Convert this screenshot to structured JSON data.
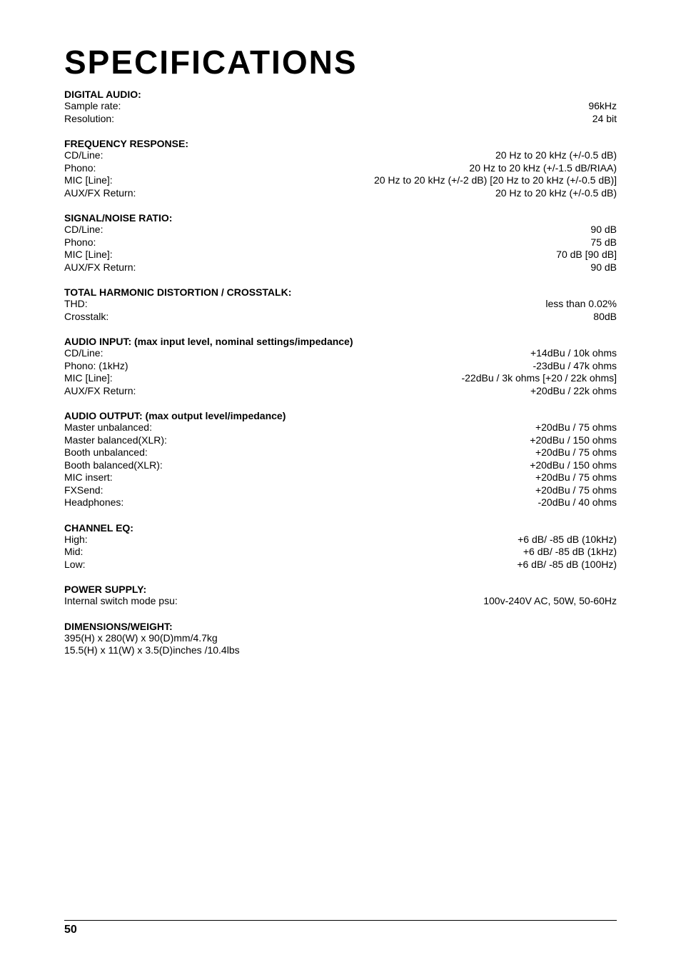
{
  "title": "SPECIFICATIONS",
  "sections": [
    {
      "header": "DIGITAL AUDIO:",
      "rows": [
        {
          "label": "Sample rate:",
          "value": "96kHz"
        },
        {
          "label": "Resolution:",
          "value": "24 bit"
        }
      ]
    },
    {
      "header": "FREQUENCY RESPONSE:",
      "rows": [
        {
          "label": "CD/Line:",
          "value": "20 Hz to 20 kHz (+/-0.5 dB)"
        },
        {
          "label": "Phono:",
          "value": "20 Hz to 20 kHz (+/-1.5 dB/RIAA)"
        },
        {
          "label": "MIC [Line]:",
          "value": "20 Hz to 20 kHz (+/-2 dB) [20 Hz to 20 kHz (+/-0.5 dB)]"
        },
        {
          "label": "AUX/FX Return:",
          "value": "20 Hz to 20 kHz (+/-0.5 dB)"
        }
      ]
    },
    {
      "header": "SIGNAL/NOISE RATIO:",
      "rows": [
        {
          "label": "CD/Line:",
          "value": "90 dB"
        },
        {
          "label": "Phono:",
          "value": "75 dB"
        },
        {
          "label": "MIC [Line]:",
          "value": "70 dB [90 dB]"
        },
        {
          "label": "AUX/FX Return:",
          "value": "90 dB"
        }
      ]
    },
    {
      "header": "TOTAL HARMONIC DISTORTION / CROSSTALK:",
      "rows": [
        {
          "label": "THD:",
          "value": "less than 0.02%"
        },
        {
          "label": "Crosstalk:",
          "value": "80dB"
        }
      ]
    },
    {
      "header": "AUDIO INPUT: (max input level, nominal settings/impedance)",
      "rows": [
        {
          "label": "CD/Line:",
          "value": "+14dBu / 10k ohms"
        },
        {
          "label": "Phono: (1kHz)",
          "value": "-23dBu / 47k ohms"
        },
        {
          "label": "MIC [Line]:",
          "value": "-22dBu / 3k ohms [+20 / 22k ohms]"
        },
        {
          "label": "AUX/FX Return:",
          "value": "+20dBu / 22k ohms"
        }
      ]
    },
    {
      "header": "AUDIO OUTPUT: (max output level/impedance)",
      "rows": [
        {
          "label": "Master unbalanced:",
          "value": "+20dBu / 75 ohms"
        },
        {
          "label": "Master balanced(XLR):",
          "value": "+20dBu / 150 ohms"
        },
        {
          "label": "Booth unbalanced:",
          "value": "+20dBu / 75 ohms"
        },
        {
          "label": "Booth balanced(XLR):",
          "value": "+20dBu / 150 ohms"
        },
        {
          "label": "MIC insert:",
          "value": "+20dBu / 75 ohms"
        },
        {
          "label": "FXSend:",
          "value": "+20dBu / 75 ohms"
        },
        {
          "label": "Headphones:",
          "value": "-20dBu / 40 ohms"
        }
      ]
    },
    {
      "header": "CHANNEL EQ:",
      "rows": [
        {
          "label": "High:",
          "value": "+6 dB/ -85 dB (10kHz)"
        },
        {
          "label": "Mid:",
          "value": "+6 dB/ -85 dB (1kHz)"
        },
        {
          "label": "Low:",
          "value": "+6 dB/ -85 dB (100Hz)"
        }
      ]
    },
    {
      "header": "POWER SUPPLY:",
      "rows": [
        {
          "label": "Internal switch mode psu:",
          "value": "100v-240V AC, 50W, 50-60Hz"
        }
      ]
    },
    {
      "header": "DIMENSIONS/WEIGHT:",
      "rows": [],
      "extra": [
        "395(H) x 280(W) x 90(D)mm/4.7kg",
        "15.5(H) x 11(W) x 3.5(D)inches /10.4lbs"
      ]
    }
  ],
  "pageNumber": "50",
  "colors": {
    "text": "#000000",
    "background": "#ffffff",
    "line": "#000000"
  }
}
